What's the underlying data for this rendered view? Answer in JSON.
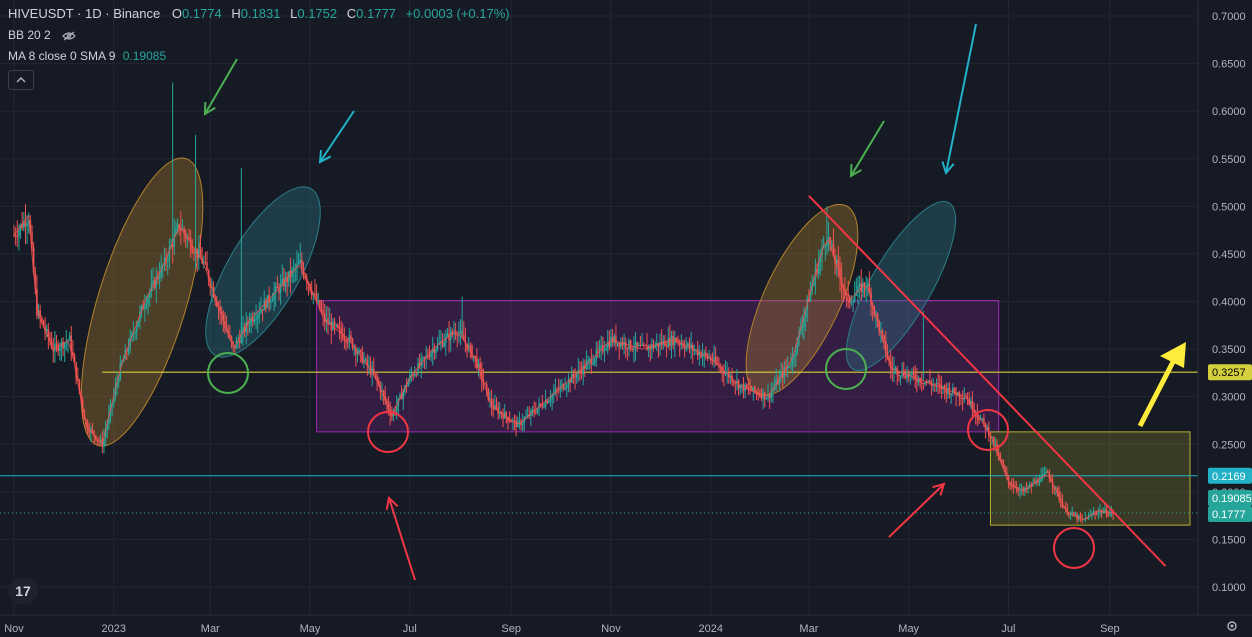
{
  "header": {
    "symbol": "HIVEUSDT · 1D · Binance",
    "o_label": "O",
    "o_value": "0.1774",
    "h_label": "H",
    "h_value": "0.1831",
    "l_label": "L",
    "l_value": "0.1752",
    "c_label": "C",
    "c_value": "0.1777",
    "change": "+0.0003 (+0.17%)"
  },
  "indicators": {
    "bb": "BB 20 2",
    "ma_label": "MA 8 close 0 SMA 9",
    "ma_value": "0.19085"
  },
  "collapse_icon": "chevron-up-icon",
  "logo_text": "17",
  "colors": {
    "background": "#161a25",
    "up": "#26a69a",
    "down": "#ef5350",
    "grid": "#232733",
    "axis_text": "#b2b5be",
    "support_line": "#d4cf3c",
    "cyan_line": "#22b1c7",
    "range_box": "#9c27b0",
    "yellow_box": "#b5b032",
    "trend_line": "#f23645",
    "red_circle": "#f23645",
    "green_circle": "#4caf50",
    "green_arrow": "#4caf50",
    "blue_arrow": "#22b1c7",
    "red_arrow": "#f23645",
    "yellow_arrow": "#ffeb3b",
    "orange_ellipse": "#b5832b",
    "blue_ellipse": "#2a7f8a"
  },
  "chart_data": {
    "type": "candlestick",
    "title": "HIVEUSDT · 1D · Binance",
    "ylim": [
      0.1,
      0.7
    ],
    "y_ticks": [
      "0.1000",
      "0.1500",
      "0.2000",
      "0.2500",
      "0.3000",
      "0.3500",
      "0.4000",
      "0.4500",
      "0.5000",
      "0.5500",
      "0.6000",
      "0.6500",
      "0.7000"
    ],
    "x_ticks": [
      "Nov",
      "2023",
      "Mar",
      "May",
      "Jul",
      "Sep",
      "Nov",
      "2024",
      "Mar",
      "May",
      "Jul",
      "Sep"
    ],
    "x_tick_dates": [
      "2022-11-01",
      "2023-01-01",
      "2023-03-01",
      "2023-05-01",
      "2023-07-01",
      "2023-09-01",
      "2023-11-01",
      "2024-01-01",
      "2024-03-01",
      "2024-05-01",
      "2024-07-01",
      "2024-09-01"
    ],
    "xlim": [
      "2022-11-01",
      "2024-10-20"
    ],
    "grid": true,
    "price_labels": [
      {
        "text": "0.3257",
        "value": 0.3257,
        "bg": "#d4cf3c",
        "fg": "#000000"
      },
      {
        "text": "0.2169",
        "value": 0.2169,
        "bg": "#22b1c7",
        "fg": "#ffffff"
      },
      {
        "text": "0.19085",
        "value": 0.19085,
        "bg": "#26a69a",
        "fg": "#ffffff"
      },
      {
        "text": "0.1777",
        "value": 0.1777,
        "bg": "#26a69a",
        "fg": "#ffffff"
      }
    ],
    "price_path": [
      [
        "2022-11-01",
        0.47
      ],
      [
        "2022-11-10",
        0.49
      ],
      [
        "2022-11-15",
        0.39
      ],
      [
        "2022-11-25",
        0.35
      ],
      [
        "2022-12-05",
        0.36
      ],
      [
        "2022-12-15",
        0.27
      ],
      [
        "2022-12-25",
        0.25
      ],
      [
        "2023-01-05",
        0.33
      ],
      [
        "2023-01-20",
        0.4
      ],
      [
        "2023-02-01",
        0.44
      ],
      [
        "2023-02-10",
        0.48
      ],
      [
        "2023-02-25",
        0.44
      ],
      [
        "2023-03-05",
        0.4
      ],
      [
        "2023-03-15",
        0.35
      ],
      [
        "2023-03-25",
        0.38
      ],
      [
        "2023-04-10",
        0.41
      ],
      [
        "2023-04-25",
        0.44
      ],
      [
        "2023-05-10",
        0.38
      ],
      [
        "2023-05-25",
        0.36
      ],
      [
        "2023-06-10",
        0.32
      ],
      [
        "2023-06-20",
        0.28
      ],
      [
        "2023-07-01",
        0.32
      ],
      [
        "2023-07-15",
        0.35
      ],
      [
        "2023-07-30",
        0.37
      ],
      [
        "2023-08-10",
        0.34
      ],
      [
        "2023-08-20",
        0.29
      ],
      [
        "2023-09-05",
        0.27
      ],
      [
        "2023-09-25",
        0.3
      ],
      [
        "2023-10-15",
        0.33
      ],
      [
        "2023-11-01",
        0.36
      ],
      [
        "2023-11-20",
        0.35
      ],
      [
        "2023-12-10",
        0.36
      ],
      [
        "2024-01-01",
        0.34
      ],
      [
        "2024-01-20",
        0.31
      ],
      [
        "2024-02-05",
        0.3
      ],
      [
        "2024-02-20",
        0.34
      ],
      [
        "2024-03-05",
        0.43
      ],
      [
        "2024-03-12",
        0.47
      ],
      [
        "2024-03-25",
        0.4
      ],
      [
        "2024-04-05",
        0.42
      ],
      [
        "2024-04-20",
        0.33
      ],
      [
        "2024-05-05",
        0.32
      ],
      [
        "2024-05-20",
        0.31
      ],
      [
        "2024-06-05",
        0.3
      ],
      [
        "2024-06-20",
        0.26
      ],
      [
        "2024-07-01",
        0.21
      ],
      [
        "2024-07-10",
        0.2
      ],
      [
        "2024-07-25",
        0.22
      ],
      [
        "2024-08-05",
        0.18
      ],
      [
        "2024-08-15",
        0.17
      ],
      [
        "2024-08-25",
        0.18
      ],
      [
        "2024-09-03",
        0.1777
      ]
    ],
    "annotations": {
      "support_line": {
        "value": 0.3257,
        "from": "2022-12-25",
        "to": "2024-10-20"
      },
      "cyan_line": {
        "value": 0.2169
      },
      "range_box": {
        "from": "2023-05-05",
        "to": "2024-06-25",
        "low": 0.263,
        "high": 0.401
      },
      "yellow_box": {
        "from": "2024-06-20",
        "to": "2024-10-20",
        "low": 0.165,
        "high": 0.263
      },
      "trend_line": {
        "from": [
          "2024-03-01",
          0.511
        ],
        "to": [
          "2024-10-05",
          0.122
        ]
      }
    }
  }
}
